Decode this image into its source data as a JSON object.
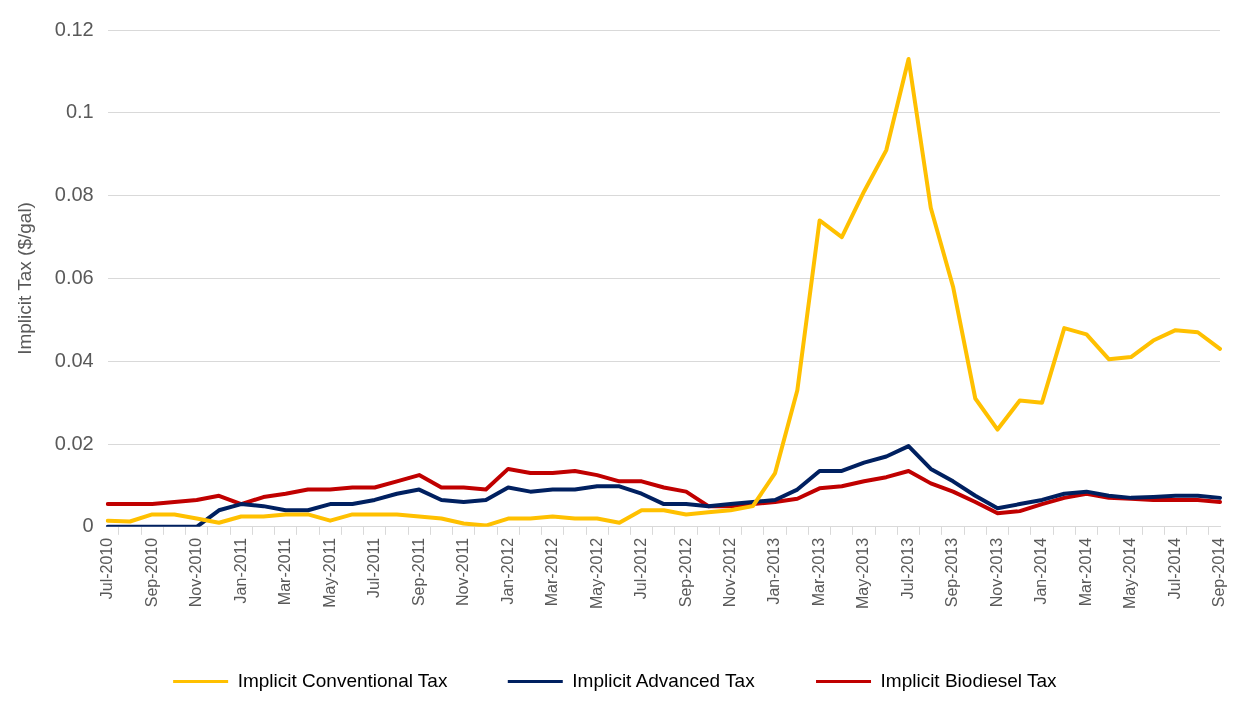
{
  "chart_data": {
    "type": "line",
    "ylabel": "Implicit Tax ($/gal)",
    "categories": [
      "Jul-2010",
      null,
      "Sep-2010",
      null,
      "Nov-2010",
      null,
      "Jan-2011",
      null,
      "Mar-2011",
      null,
      "May-2011",
      null,
      "Jul-2011",
      null,
      "Sep-2011",
      null,
      "Nov-2011",
      null,
      "Jan-2012",
      null,
      "Mar-2012",
      null,
      "May-2012",
      null,
      "Jul-2012",
      null,
      "Sep-2012",
      null,
      "Nov-2012",
      null,
      "Jan-2013",
      null,
      "Mar-2013",
      null,
      "May-2013",
      null,
      "Jul-2013",
      null,
      "Sep-2013",
      null,
      "Nov-2013",
      null,
      "Jan-2014",
      null,
      "Mar-2014",
      null,
      "May-2014",
      null,
      "Jul-2014",
      null,
      "Sep-2014"
    ],
    "series": [
      {
        "name": "Implicit Conventional Tax",
        "color": "#ffc000",
        "values": [
          0.0015,
          0.0013,
          0.003,
          0.003,
          0.002,
          0.001,
          0.0025,
          0.0025,
          0.003,
          0.003,
          0.0015,
          0.003,
          0.003,
          0.003,
          0.0025,
          0.002,
          0.0008,
          0.0003,
          0.002,
          0.002,
          0.0025,
          0.002,
          0.002,
          0.001,
          0.004,
          0.004,
          0.003,
          0.0035,
          0.004,
          0.005,
          0.013,
          0.033,
          0.074,
          0.07,
          0.081,
          0.091,
          0.113,
          0.077,
          0.058,
          0.031,
          0.0235,
          0.0305,
          0.03,
          0.048,
          0.0465,
          0.0405,
          0.041,
          0.045,
          0.0475,
          0.047,
          0.043
        ]
      },
      {
        "name": "Implicit Advanced Tax",
        "color": "#002060",
        "values": [
          0,
          0,
          0,
          0,
          0,
          0.004,
          0.0055,
          0.005,
          0.004,
          0.004,
          0.0055,
          0.0055,
          0.0065,
          0.008,
          0.009,
          0.0065,
          0.006,
          0.0065,
          0.0095,
          0.0085,
          0.009,
          0.009,
          0.0098,
          0.0098,
          0.008,
          0.0055,
          0.0055,
          0.005,
          0.0055,
          0.006,
          0.0065,
          0.009,
          0.0135,
          0.0135,
          0.0155,
          0.017,
          0.0195,
          0.014,
          0.011,
          0.0075,
          0.0045,
          0.0055,
          0.0065,
          0.008,
          0.0085,
          0.0075,
          0.007,
          0.0072,
          0.0075,
          0.0075,
          0.007
        ]
      },
      {
        "name": "Implicit Biodiesel Tax",
        "color": "#c00000",
        "values": [
          0.0055,
          0.0055,
          0.0055,
          0.006,
          0.0065,
          0.0075,
          0.0055,
          0.0072,
          0.008,
          0.009,
          0.009,
          0.0095,
          0.0095,
          0.011,
          0.0125,
          0.0095,
          0.0095,
          0.009,
          0.014,
          0.013,
          0.013,
          0.0135,
          0.0125,
          0.011,
          0.011,
          0.0095,
          0.0085,
          0.005,
          0.005,
          0.0055,
          0.006,
          0.0068,
          0.0093,
          0.0098,
          0.011,
          0.012,
          0.0135,
          0.0105,
          0.0085,
          0.006,
          0.0033,
          0.0038,
          0.0055,
          0.007,
          0.008,
          0.007,
          0.0068,
          0.0065,
          0.0065,
          0.0065,
          0.006
        ]
      }
    ],
    "ylim": [
      0,
      0.12
    ],
    "yticks": [
      0,
      0.02,
      0.04,
      0.06,
      0.08,
      0.1,
      0.12
    ],
    "grid": "y",
    "legend": "bottom",
    "marker": "none",
    "line_style": "solid"
  }
}
